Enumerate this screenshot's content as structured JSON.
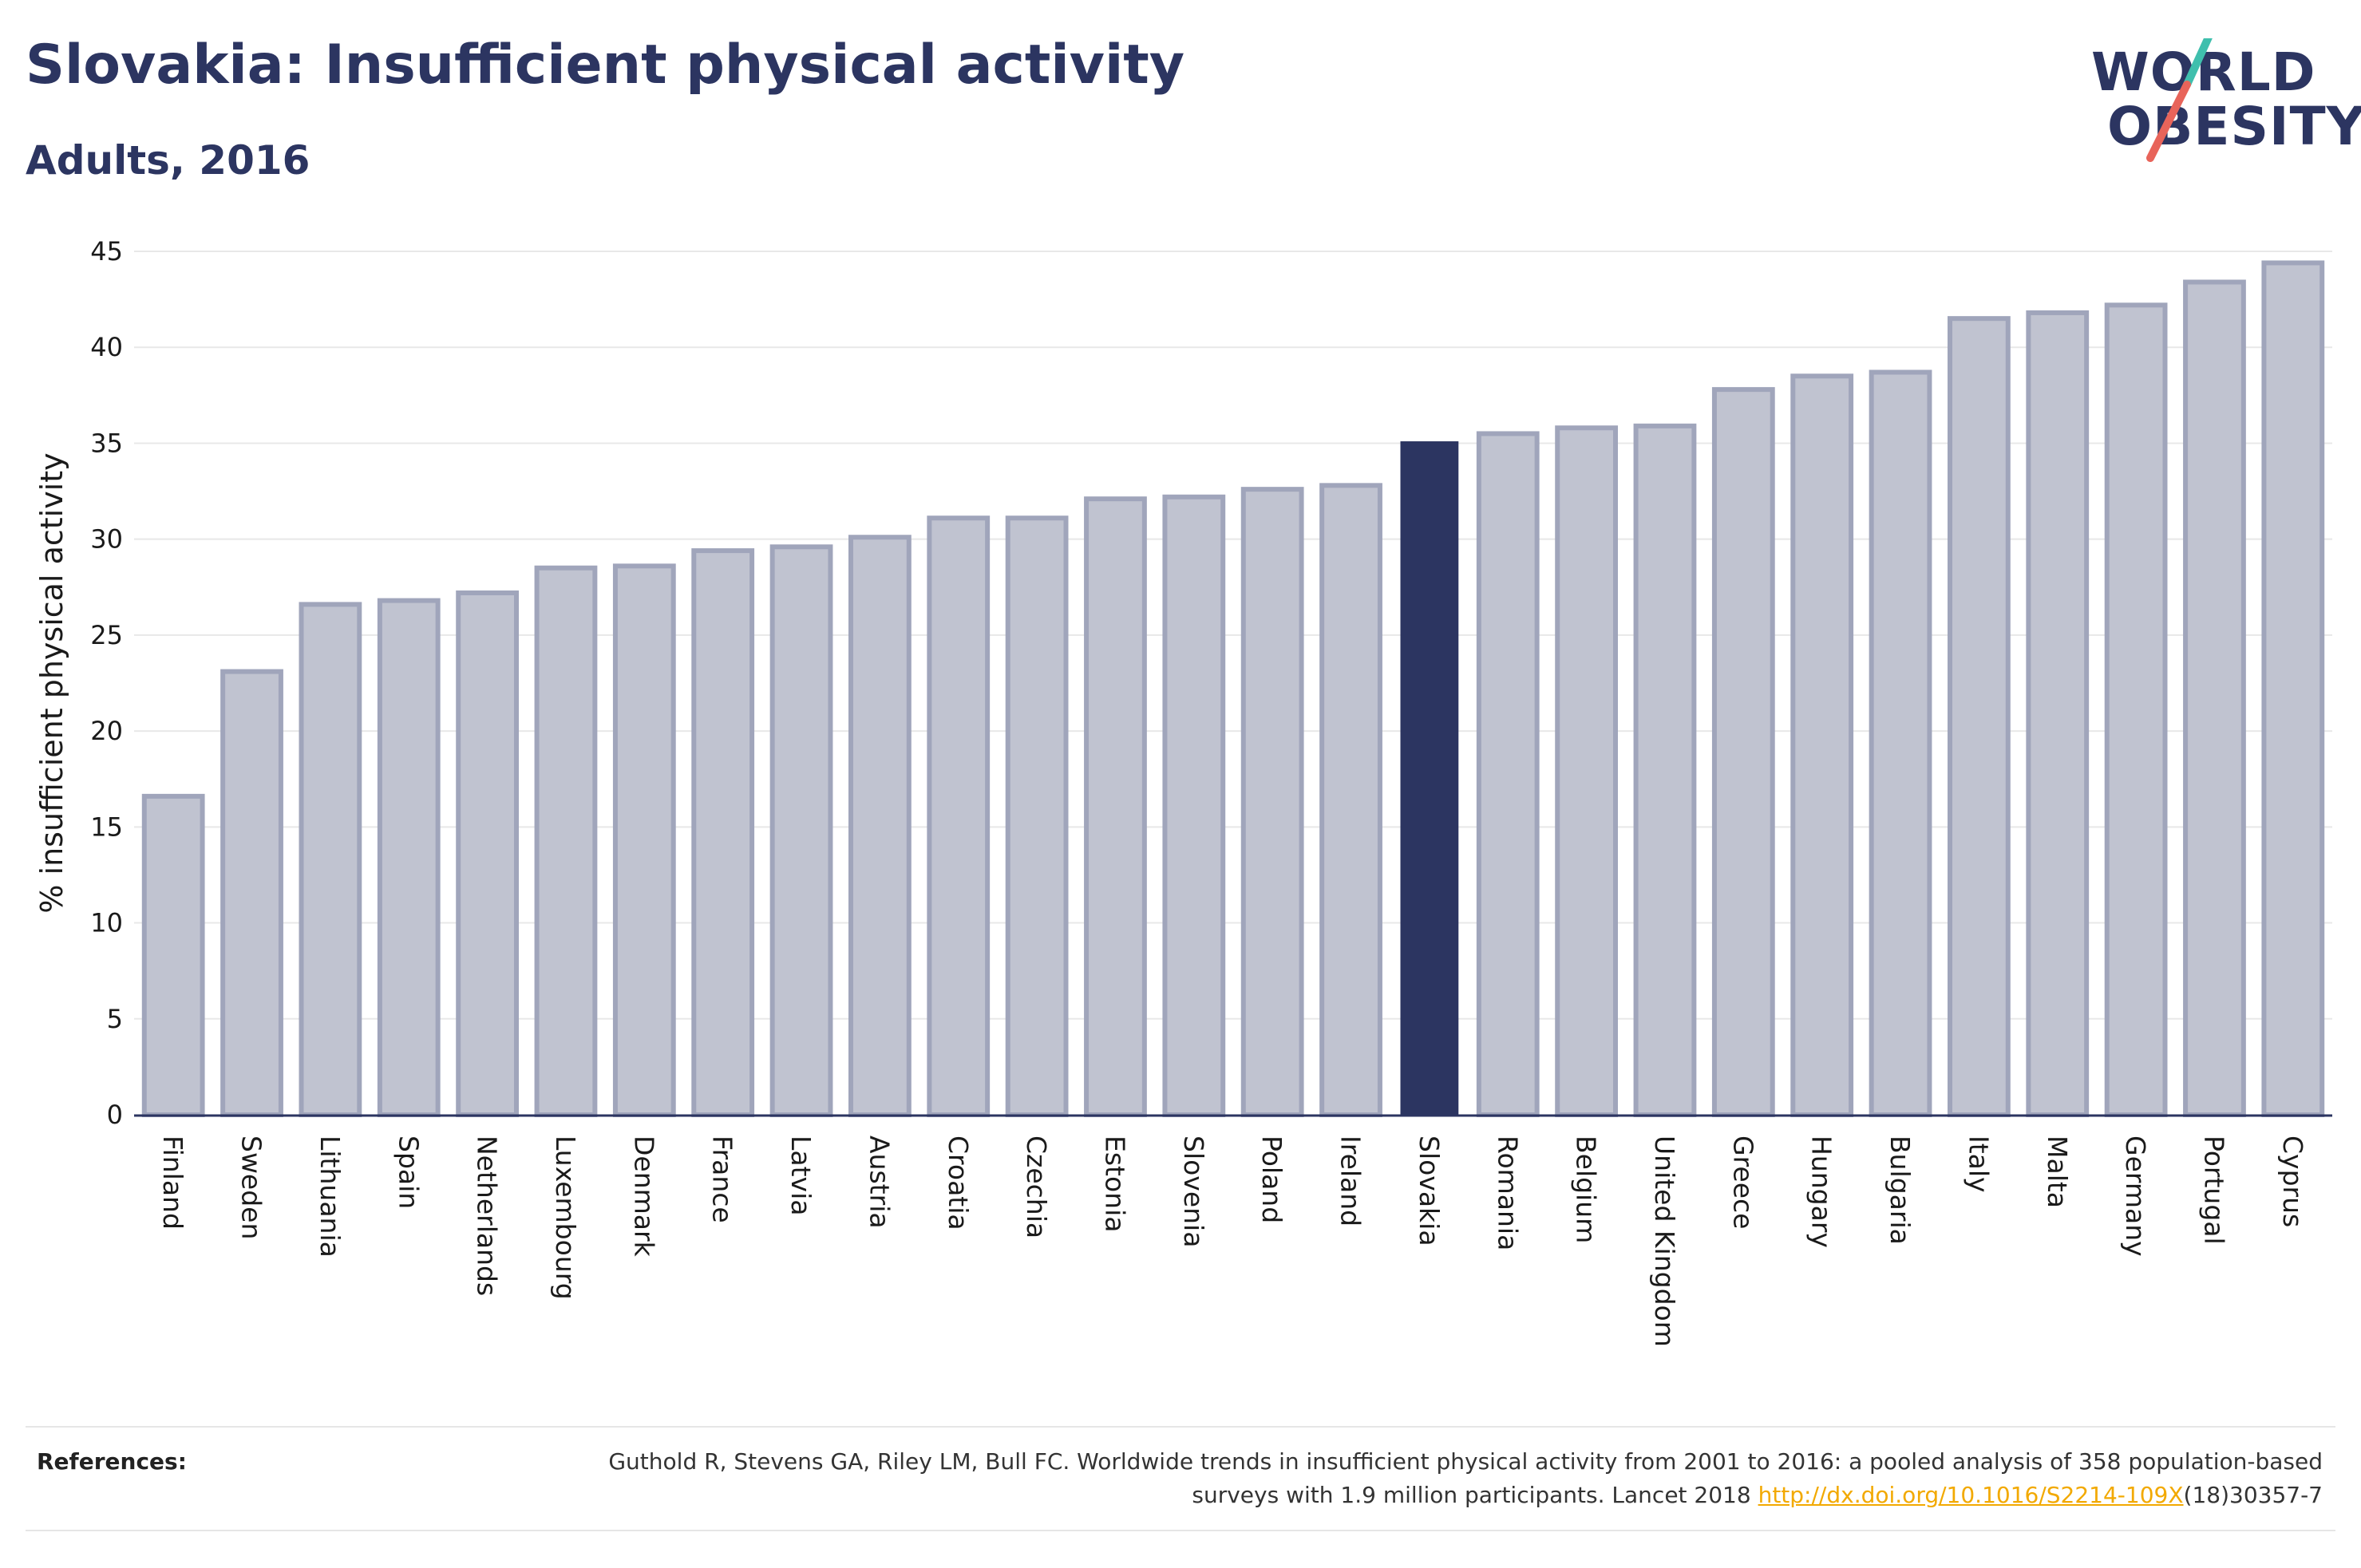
{
  "header": {
    "title": "Slovakia: Insufficient physical activity",
    "subtitle": "Adults, 2016"
  },
  "logo": {
    "line1": "WORLD",
    "line2": "OBESITY",
    "colors": {
      "text": "#2c3561",
      "slash_top": "#3fbfad",
      "slash_bottom": "#e8645a"
    }
  },
  "colors": {
    "bar_default_fill": "#c0c3d0",
    "bar_default_stroke": "#a0a5bb",
    "bar_highlight": "#2c3561",
    "grid": "#e8e8e8",
    "axis_text": "#1a1a1a"
  },
  "chart_data": {
    "type": "bar",
    "title": "Slovakia: Insufficient physical activity",
    "subtitle": "Adults, 2016",
    "xlabel": "",
    "ylabel": "% insufficient physical activity",
    "ylim": [
      0,
      45
    ],
    "yticks": [
      0,
      5,
      10,
      15,
      20,
      25,
      30,
      35,
      40,
      45
    ],
    "grid": true,
    "highlight": "Slovakia",
    "categories": [
      "Finland",
      "Sweden",
      "Lithuania",
      "Spain",
      "Netherlands",
      "Luxembourg",
      "Denmark",
      "France",
      "Latvia",
      "Austria",
      "Croatia",
      "Czechia",
      "Estonia",
      "Slovenia",
      "Poland",
      "Ireland",
      "Slovakia",
      "Romania",
      "Belgium",
      "United Kingdom",
      "Greece",
      "Hungary",
      "Bulgaria",
      "Italy",
      "Malta",
      "Germany",
      "Portugal",
      "Cyprus"
    ],
    "values": [
      16.6,
      23.1,
      26.6,
      26.8,
      27.2,
      28.5,
      28.6,
      29.4,
      29.6,
      30.1,
      31.1,
      31.1,
      32.1,
      32.2,
      32.6,
      32.8,
      35.1,
      35.5,
      35.8,
      35.9,
      37.8,
      38.5,
      38.7,
      41.5,
      41.8,
      42.2,
      43.4,
      44.4
    ]
  },
  "references": {
    "label": "References:",
    "text_before_link": "Guthold R, Stevens GA, Riley LM, Bull FC. Worldwide trends in insufficient physical activity from 2001 to 2016: a pooled analysis of 358 population-based surveys with 1.9 million participants. Lancet 2018 ",
    "link": "http://dx.doi.org/10.1016/S2214-109X",
    "text_after_link": "(18)30357-7"
  }
}
